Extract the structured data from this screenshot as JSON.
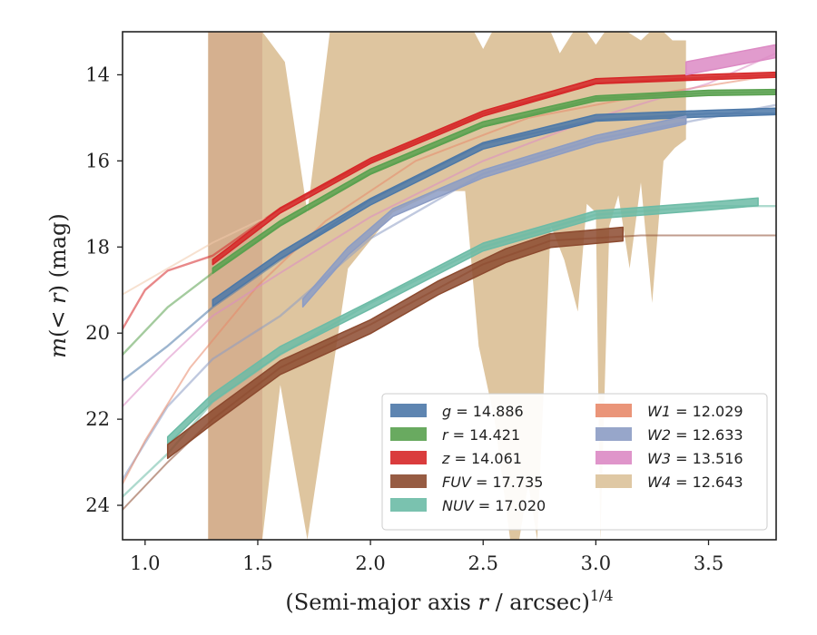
{
  "chart_data": {
    "type": "line",
    "xlabel": "(Semi-major axis r / arcsec)^{1/4}",
    "ylabel": "m(< r) (mag)",
    "xlim": [
      0.9,
      3.8
    ],
    "ylim": [
      24.8,
      13.0
    ],
    "y_inverted": true,
    "x_ticks": [
      1.0,
      1.5,
      2.0,
      2.5,
      3.0,
      3.5
    ],
    "x_tick_labels": [
      "1.0",
      "1.5",
      "2.0",
      "2.5",
      "3.0",
      "3.5"
    ],
    "y_ticks": [
      14,
      16,
      18,
      20,
      22,
      24
    ],
    "y_tick_labels": [
      "14",
      "16",
      "18",
      "20",
      "22",
      "24"
    ],
    "grid": false,
    "legend": {
      "placement": "lower-right",
      "columns": 2,
      "entries": [
        {
          "var": "g",
          "value": "14.886",
          "color": "#4c78a8"
        },
        {
          "var": "r",
          "value": "14.421",
          "color": "#59a14f"
        },
        {
          "var": "z",
          "value": "14.061",
          "color": "#d62728"
        },
        {
          "var": "FUV",
          "value": "17.735",
          "color": "#8c4a2f"
        },
        {
          "var": "NUV",
          "value": "17.020",
          "color": "#6cbba6"
        },
        {
          "var": "W1",
          "value": "12.029",
          "color": "#e8896a"
        },
        {
          "var": "W2",
          "value": "12.633",
          "color": "#8c9cc4"
        },
        {
          "var": "W3",
          "value": "13.516",
          "color": "#dc8ac4"
        },
        {
          "var": "W4",
          "value": "12.643",
          "color": "#dcc29a"
        }
      ]
    },
    "series": [
      {
        "name": "g",
        "color": "#4c78a8",
        "width": 2.4,
        "ext": {
          "x": [
            0.9,
            1.1,
            1.3,
            1.6,
            2.0,
            2.5,
            3.0,
            3.5,
            3.8
          ],
          "y": [
            21.1,
            20.3,
            19.4,
            18.3,
            16.9,
            15.6,
            15.05,
            14.9,
            14.9
          ]
        },
        "band": {
          "x": [
            1.3,
            1.6,
            2.0,
            2.5,
            3.0,
            3.5,
            3.8
          ],
          "y": [
            19.3,
            18.2,
            16.95,
            15.65,
            15.0,
            14.9,
            14.85
          ],
          "w": 0.15
        }
      },
      {
        "name": "r",
        "color": "#59a14f",
        "width": 2.4,
        "ext": {
          "x": [
            0.9,
            1.1,
            1.3,
            1.6,
            2.0,
            2.5,
            3.0,
            3.5,
            3.8
          ],
          "y": [
            20.5,
            19.4,
            18.6,
            17.5,
            16.3,
            15.2,
            14.55,
            14.42,
            14.4
          ]
        },
        "band": {
          "x": [
            1.3,
            1.6,
            2.0,
            2.5,
            3.0,
            3.5,
            3.8
          ],
          "y": [
            18.55,
            17.45,
            16.25,
            15.15,
            14.55,
            14.42,
            14.4
          ],
          "w": 0.12
        }
      },
      {
        "name": "z",
        "color": "#d62728",
        "width": 2.4,
        "ext": {
          "x": [
            0.9,
            1.0,
            1.1,
            1.3,
            1.6,
            2.0,
            2.5,
            3.0,
            3.5,
            3.8
          ],
          "y": [
            19.9,
            19.0,
            18.55,
            18.2,
            17.1,
            16.0,
            14.9,
            14.2,
            14.06,
            14.0
          ]
        },
        "band": {
          "x": [
            1.3,
            1.6,
            2.0,
            2.5,
            3.0,
            3.5,
            3.8
          ],
          "y": [
            18.35,
            17.15,
            16.0,
            14.9,
            14.15,
            14.05,
            14.0
          ],
          "w": 0.12
        }
      },
      {
        "name": "W2",
        "color": "#8c9cc4",
        "width": 2.4,
        "ext": {
          "x": [
            0.9,
            1.1,
            1.3,
            1.6,
            2.0,
            2.5,
            3.0,
            3.5,
            3.8
          ],
          "y": [
            23.4,
            21.7,
            20.6,
            19.6,
            17.8,
            16.3,
            15.5,
            15.0,
            14.7
          ]
        },
        "band": {
          "x": [
            1.7,
            1.9,
            2.1,
            2.5,
            3.0,
            3.4
          ],
          "y": [
            19.3,
            18.1,
            17.2,
            16.3,
            15.5,
            15.05
          ],
          "w": 0.18
        }
      },
      {
        "name": "W1",
        "color": "#e8896a",
        "width": 2.0,
        "ext": {
          "x": [
            0.9,
            1.0,
            1.2,
            1.5,
            1.8,
            2.2,
            2.7,
            3.2,
            3.8
          ],
          "y": [
            23.5,
            22.5,
            20.8,
            18.9,
            17.4,
            16.0,
            15.0,
            14.5,
            14.0
          ]
        },
        "band": null
      },
      {
        "name": "W1-faint",
        "color": "#f0c8aa",
        "width": 2.0,
        "ext": {
          "x": [
            0.9,
            1.1,
            1.3,
            1.5,
            1.8
          ],
          "y": [
            19.1,
            18.5,
            17.9,
            17.4,
            16.9
          ]
        },
        "band": null
      },
      {
        "name": "W3",
        "color": "#dc8ac4",
        "width": 2.0,
        "ext": {
          "x": [
            0.9,
            1.1,
            1.3,
            1.6,
            2.0,
            2.5,
            3.0,
            3.5,
            3.8
          ],
          "y": [
            21.7,
            20.6,
            19.6,
            18.6,
            17.3,
            16.0,
            15.0,
            14.2,
            13.5
          ]
        },
        "band": {
          "x": [
            3.4,
            3.6,
            3.8
          ],
          "y": [
            13.85,
            13.65,
            13.45
          ],
          "w": 0.3
        }
      },
      {
        "name": "NUV",
        "color": "#6cbba6",
        "width": 2.4,
        "ext": {
          "x": [
            0.9,
            1.1,
            1.3,
            1.6,
            2.0,
            2.5,
            3.0,
            3.5,
            3.8
          ],
          "y": [
            23.8,
            22.8,
            21.6,
            20.5,
            19.3,
            18.0,
            17.25,
            17.05,
            17.05
          ]
        },
        "band": {
          "x": [
            1.1,
            1.3,
            1.6,
            2.0,
            2.5,
            3.0,
            3.5,
            3.72
          ],
          "y": [
            22.5,
            21.5,
            20.4,
            19.35,
            18.0,
            17.25,
            17.05,
            16.95
          ],
          "w": 0.18
        }
      },
      {
        "name": "FUV",
        "color": "#8c4a2f",
        "width": 2.0,
        "ext": {
          "x": [
            0.9,
            1.1,
            1.3,
            1.6,
            2.0,
            2.5,
            2.8,
            3.2,
            3.8
          ],
          "y": [
            24.1,
            23.0,
            22.0,
            20.8,
            19.8,
            18.4,
            17.85,
            17.73,
            17.73
          ]
        },
        "band": {
          "x": [
            1.1,
            1.3,
            1.6,
            2.0,
            2.3,
            2.6,
            2.8,
            3.12
          ],
          "y": [
            22.75,
            21.95,
            20.8,
            19.85,
            18.95,
            18.2,
            17.85,
            17.7
          ],
          "w": 0.32
        }
      }
    ],
    "w4_envelope": {
      "color": "#dcc29a",
      "lower": {
        "x": [
          1.28,
          1.52,
          1.6,
          1.72,
          1.9,
          2.1,
          2.3,
          2.42,
          2.48,
          2.55,
          2.62,
          2.66,
          2.7,
          2.74,
          2.8,
          2.86,
          2.92,
          2.96,
          3.0,
          3.02,
          3.06,
          3.1,
          3.15,
          3.2,
          3.25,
          3.3,
          3.35,
          3.4
        ],
        "y": [
          24.8,
          24.8,
          21.2,
          24.8,
          18.5,
          17.2,
          16.7,
          16.7,
          20.3,
          22.0,
          24.8,
          24.8,
          23.5,
          24.8,
          17.5,
          18.3,
          19.5,
          17.0,
          17.2,
          24.8,
          17.5,
          16.8,
          18.5,
          16.5,
          19.3,
          16.0,
          15.7,
          15.5
        ]
      },
      "upper": {
        "x": [
          1.28,
          1.52,
          1.62,
          1.72,
          1.82,
          1.9,
          2.0,
          2.1,
          2.2,
          2.3,
          2.4,
          2.46,
          2.5,
          2.54,
          2.6,
          2.66,
          2.7,
          2.75,
          2.8,
          2.84,
          2.9,
          2.96,
          3.0,
          3.04,
          3.1,
          3.14,
          3.2,
          3.24,
          3.3,
          3.34,
          3.4
        ],
        "y": [
          13.0,
          13.0,
          13.7,
          17.2,
          13.0,
          13.0,
          13.0,
          13.0,
          13.0,
          13.0,
          13.0,
          13.0,
          13.4,
          13.0,
          13.0,
          13.0,
          13.0,
          13.0,
          13.0,
          13.5,
          13.0,
          13.0,
          13.3,
          13.0,
          13.0,
          13.0,
          13.2,
          13.0,
          13.0,
          13.2,
          13.2
        ]
      },
      "dark_band": {
        "x0": 1.28,
        "x1": 1.52,
        "color": "#d4ac8c"
      }
    }
  }
}
